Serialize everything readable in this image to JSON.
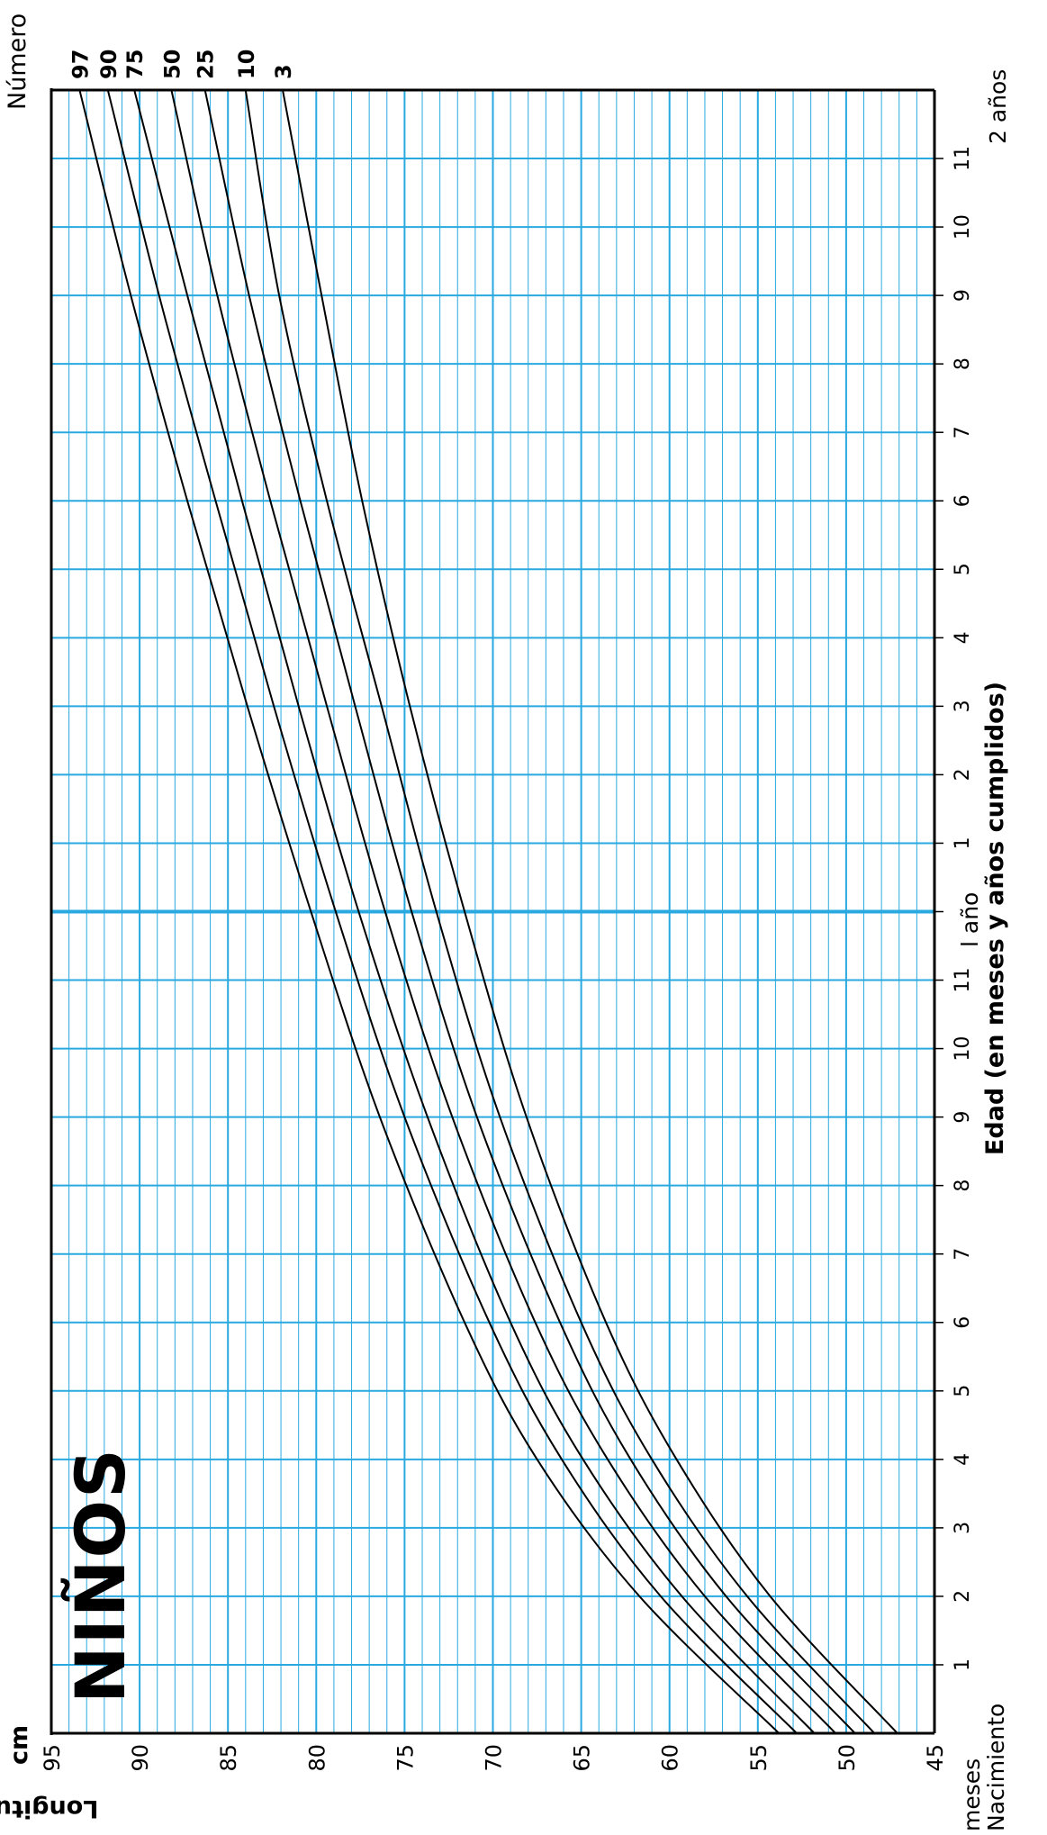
{
  "chart_data": {
    "type": "line",
    "title": "NIÑOS",
    "ylabel": "Longitud",
    "yunit": "cm",
    "xlabel": "Edad (en meses y años cumplidos)",
    "x_unit_label": "meses",
    "x_start_label": "Nacimiento",
    "year_labels": [
      "l año",
      "2 años"
    ],
    "legend_title": "Número",
    "ylim": [
      45,
      95
    ],
    "xlim": [
      0,
      24
    ],
    "y_ticks": [
      45,
      50,
      55,
      60,
      65,
      70,
      75,
      80,
      85,
      90,
      95
    ],
    "x_ticks": [
      {
        "month": 1,
        "label": "1"
      },
      {
        "month": 2,
        "label": "2"
      },
      {
        "month": 3,
        "label": "3"
      },
      {
        "month": 4,
        "label": "4"
      },
      {
        "month": 5,
        "label": "5"
      },
      {
        "month": 6,
        "label": "6"
      },
      {
        "month": 7,
        "label": "7"
      },
      {
        "month": 8,
        "label": "8"
      },
      {
        "month": 9,
        "label": "9"
      },
      {
        "month": 10,
        "label": "10"
      },
      {
        "month": 11,
        "label": "11"
      },
      {
        "month": 13,
        "label": "1"
      },
      {
        "month": 14,
        "label": "2"
      },
      {
        "month": 15,
        "label": "3"
      },
      {
        "month": 16,
        "label": "4"
      },
      {
        "month": 17,
        "label": "5"
      },
      {
        "month": 18,
        "label": "6"
      },
      {
        "month": 19,
        "label": "7"
      },
      {
        "month": 20,
        "label": "8"
      },
      {
        "month": 21,
        "label": "9"
      },
      {
        "month": 22,
        "label": "10"
      },
      {
        "month": 23,
        "label": "11"
      }
    ],
    "grid": true,
    "x": [
      0,
      2,
      4,
      6,
      9,
      12,
      15,
      18,
      21,
      24
    ],
    "series": [
      {
        "name": "97",
        "values": [
          53.8,
          61.7,
          67.5,
          71.6,
          76.4,
          80.3,
          83.9,
          87.3,
          90.5,
          93.4
        ]
      },
      {
        "name": "90",
        "values": [
          52.8,
          60.5,
          66.1,
          70.2,
          75.0,
          78.9,
          82.4,
          85.7,
          88.9,
          91.8
        ]
      },
      {
        "name": "75",
        "values": [
          51.8,
          59.3,
          64.9,
          69.0,
          73.7,
          77.6,
          81.0,
          84.2,
          87.3,
          90.3
        ]
      },
      {
        "name": "50",
        "values": [
          50.6,
          58.0,
          63.5,
          67.6,
          72.3,
          76.1,
          79.4,
          82.6,
          85.6,
          88.2
        ]
      },
      {
        "name": "25",
        "values": [
          49.5,
          56.8,
          62.2,
          66.2,
          70.9,
          74.6,
          77.8,
          80.9,
          83.8,
          86.3
        ]
      },
      {
        "name": "10",
        "values": [
          48.4,
          55.6,
          61.0,
          65.0,
          69.6,
          73.2,
          76.3,
          79.4,
          82.1,
          84.0
        ]
      },
      {
        "name": "3",
        "values": [
          47.1,
          54.3,
          59.6,
          63.6,
          68.1,
          71.6,
          74.7,
          77.4,
          79.7,
          81.9
        ]
      }
    ]
  }
}
